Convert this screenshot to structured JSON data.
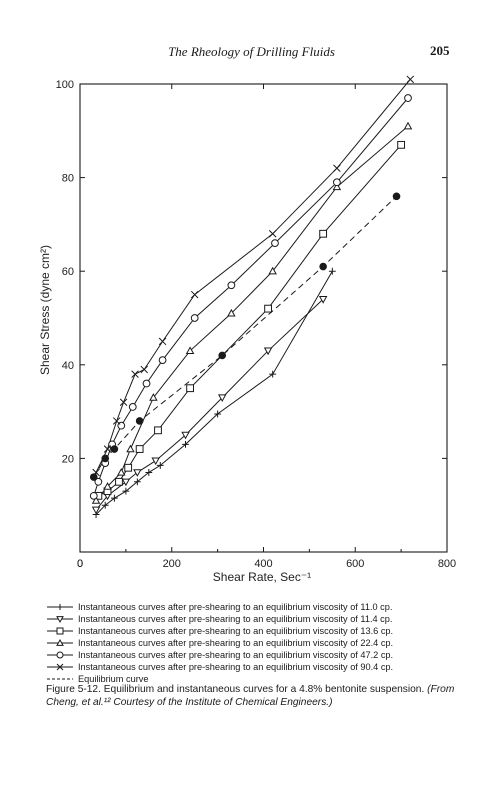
{
  "header": {
    "running_title": "The Rheology of Drilling Fluids",
    "page_number": "205"
  },
  "chart_data": {
    "type": "line",
    "xlabel": "Shear Rate, Sec⁻¹",
    "ylabel": "Shear Stress (dyne cm²)",
    "xlim": [
      0,
      800
    ],
    "ylim": [
      0,
      100
    ],
    "x_ticks": [
      "0",
      "200",
      "400",
      "600",
      "800"
    ],
    "y_ticks": [
      "20",
      "40",
      "60",
      "80",
      "100"
    ],
    "grid": false,
    "legend_position": "bottom",
    "series": [
      {
        "name": "Instantaneous curves after pre-shearing to an equilibrium viscosity of 11.0 cp.",
        "marker": "plus",
        "dash": "solid",
        "color": "#1a1a1a",
        "x": [
          35,
          55,
          75,
          100,
          125,
          150,
          175,
          230,
          300,
          420,
          550
        ],
        "y": [
          8,
          10,
          11.5,
          13,
          15,
          17,
          18.5,
          23,
          29.5,
          38,
          60
        ]
      },
      {
        "name": "Instantaneous curves after pre-shearing to an equilibrium viscosity of 11.4 cp.",
        "marker": "triangle-down",
        "dash": "solid",
        "color": "#1a1a1a",
        "x": [
          35,
          60,
          100,
          125,
          165,
          230,
          310,
          410,
          530
        ],
        "y": [
          9,
          12,
          15,
          17,
          19.5,
          25,
          33,
          43,
          54
        ]
      },
      {
        "name": "Instantaneous curves after pre-shearing to an equilibrium viscosity of 13.6 cp.",
        "marker": "square",
        "dash": "solid",
        "color": "#1a1a1a",
        "x": [
          40,
          60,
          85,
          105,
          130,
          170,
          240,
          410,
          530,
          700
        ],
        "y": [
          12,
          13,
          15,
          18,
          22,
          26,
          35,
          52,
          68,
          87
        ]
      },
      {
        "name": "Instantaneous curves after pre-shearing to an equilibrium viscosity of 22.4 cp.",
        "marker": "triangle-up",
        "dash": "solid",
        "color": "#1a1a1a",
        "x": [
          35,
          60,
          90,
          110,
          160,
          240,
          330,
          420,
          560,
          715
        ],
        "y": [
          11,
          14,
          17,
          22,
          33,
          43,
          51,
          60,
          78,
          91
        ]
      },
      {
        "name": "Instantaneous curves after pre-shearing to an equilibrium viscosity of 47.2 cp.",
        "marker": "circle",
        "dash": "solid",
        "color": "#1a1a1a",
        "x": [
          30,
          40,
          55,
          70,
          90,
          115,
          145,
          180,
          250,
          330,
          425,
          560,
          715
        ],
        "y": [
          12,
          15,
          19,
          23,
          27,
          31,
          36,
          41,
          50,
          57,
          66,
          79,
          97
        ]
      },
      {
        "name": "Instantaneous curves after pre-shearing to an equilibrium viscosity of 90.4 cp.",
        "marker": "x",
        "dash": "solid",
        "color": "#1a1a1a",
        "x": [
          35,
          60,
          80,
          95,
          120,
          140,
          180,
          250,
          420,
          560,
          720
        ],
        "y": [
          17,
          22,
          28,
          32,
          38,
          39,
          45,
          55,
          68,
          82,
          101
        ]
      },
      {
        "name": "Equilibrium curve",
        "marker": "filled",
        "dash": "dashed",
        "color": "#1a1a1a",
        "x": [
          30,
          55,
          75,
          130,
          310,
          530,
          690
        ],
        "y": [
          16,
          20,
          22,
          28,
          42,
          61,
          76
        ]
      }
    ]
  },
  "caption": {
    "text": "Figure 5-12. Equilibrium and instantaneous curves for a 4.8% bentonite suspension.",
    "source": "(From Cheng, et al.¹² Courtesy of the Institute of Chemical Engineers.)"
  }
}
